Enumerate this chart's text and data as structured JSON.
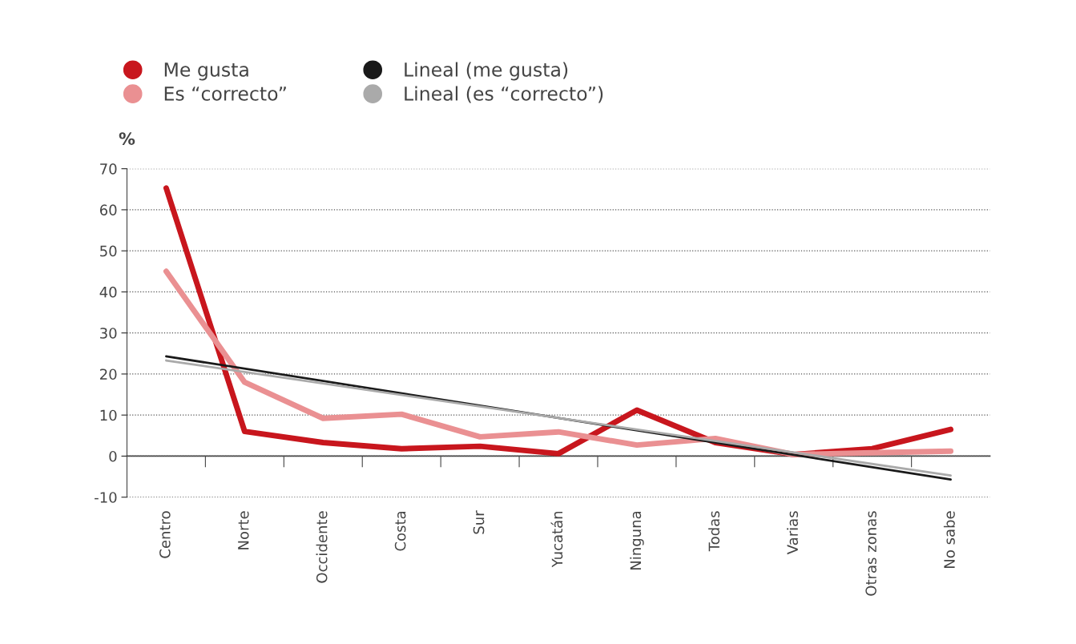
{
  "chart_data": {
    "type": "line",
    "ylabel": "%",
    "categories": [
      "Centro",
      "Norte",
      "Occidente",
      "Costa",
      "Sur",
      "Yucatán",
      "Ninguna",
      "Todas",
      "Varias",
      "Otras zonas",
      "No sabe"
    ],
    "series": [
      {
        "name": "Me gusta",
        "color": "#c8161d",
        "values": [
          65.3,
          6,
          3.3,
          1.8,
          2.4,
          0.6,
          11.2,
          3.3,
          0.4,
          1.8,
          6.5
        ]
      },
      {
        "name": "Es “correcto”",
        "color": "#ea9092",
        "values": [
          45,
          18,
          9.2,
          10.2,
          4.7,
          5.9,
          2.7,
          4.3,
          0.4,
          0.8,
          1.2
        ]
      },
      {
        "name": "Lineal (me gusta)",
        "color": "#1a1a1a",
        "type": "line",
        "x": [
          "Centro",
          "No sabe"
        ],
        "values": [
          24.3,
          -5.7
        ]
      },
      {
        "name": "Lineal (es “correcto”)",
        "color": "#aaaaaa",
        "type": "line",
        "x": [
          "Centro",
          "No sabe"
        ],
        "values": [
          23.3,
          -4.7
        ]
      }
    ],
    "ylim": [
      -10,
      70
    ],
    "yticks": [
      -10,
      0,
      10,
      20,
      30,
      40,
      50,
      60,
      70
    ],
    "grid": "y",
    "legend": "top left",
    "marker": "none",
    "line_style": "solid"
  }
}
